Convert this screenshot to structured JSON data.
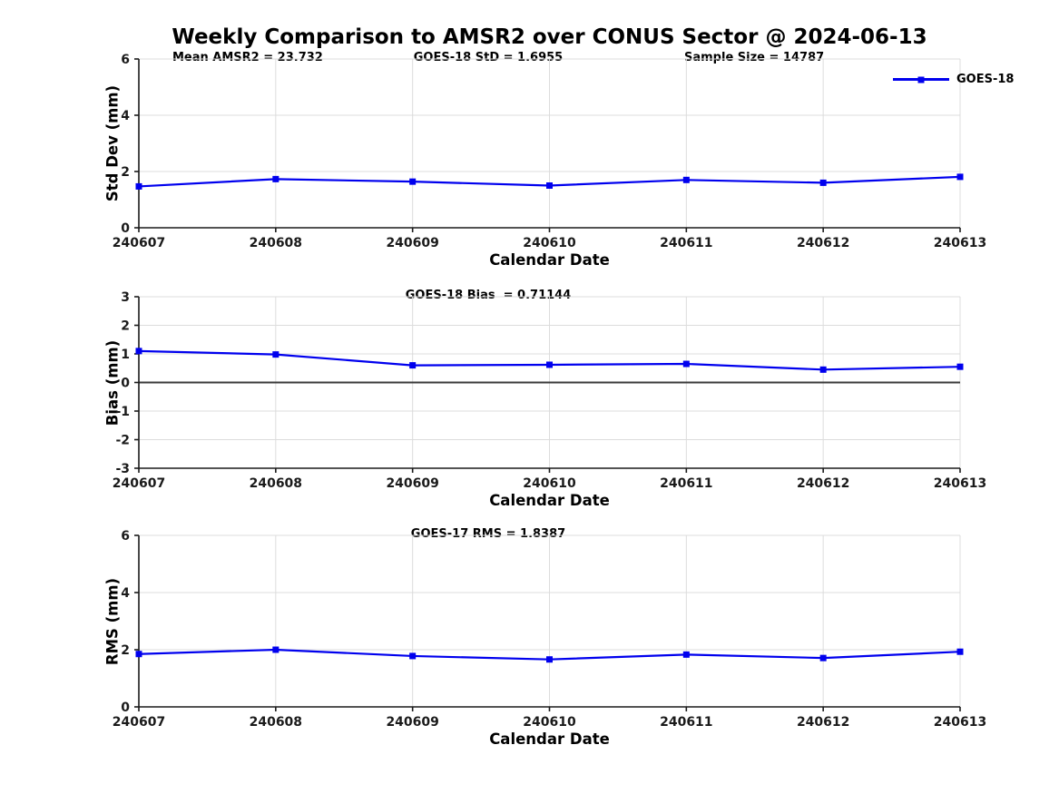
{
  "title": "Weekly Comparison to AMSR2 over CONUS Sector @ 2024-06-13",
  "legend": {
    "label": "GOES-18"
  },
  "colors": {
    "line": "#0000EE",
    "grid": "#DCDCDC",
    "axis": "#1A1A1A",
    "zero_line": "#3A3A3A",
    "text": "#000000"
  },
  "chart_data": [
    {
      "type": "line",
      "panel": "std_dev",
      "ylabel": "Std Dev (mm)",
      "xlabel": "Calendar Date",
      "categories": [
        "240607",
        "240608",
        "240609",
        "240610",
        "240611",
        "240612",
        "240613"
      ],
      "series": [
        {
          "name": "GOES-18",
          "marker": "filled-square",
          "values": [
            1.47,
            1.73,
            1.64,
            1.5,
            1.7,
            1.6,
            1.81
          ]
        }
      ],
      "ylim": [
        0,
        6
      ],
      "yticks": [
        0,
        2,
        4,
        6
      ],
      "grid": true,
      "legend_position": "top-right",
      "annotations": {
        "left": "Mean AMSR2 = 23.732",
        "center": "GOES-18 StD = 1.6955",
        "right": "Sample Size = 14787"
      }
    },
    {
      "type": "line",
      "panel": "bias",
      "ylabel": "Bias (mm)",
      "xlabel": "Calendar Date",
      "categories": [
        "240607",
        "240608",
        "240609",
        "240610",
        "240611",
        "240612",
        "240613"
      ],
      "series": [
        {
          "name": "GOES-18",
          "marker": "filled-square",
          "values": [
            1.1,
            0.98,
            0.6,
            0.62,
            0.65,
            0.45,
            0.55
          ]
        }
      ],
      "ylim": [
        -3,
        3
      ],
      "yticks": [
        -3,
        -2,
        -1,
        0,
        1,
        2,
        3
      ],
      "grid": true,
      "zero_line": true,
      "annotations": {
        "center": "GOES-18 Bias  = 0.71144"
      }
    },
    {
      "type": "line",
      "panel": "rms",
      "ylabel": "RMS (mm)",
      "xlabel": "Calendar Date",
      "categories": [
        "240607",
        "240608",
        "240609",
        "240610",
        "240611",
        "240612",
        "240613"
      ],
      "series": [
        {
          "name": "GOES-18",
          "marker": "filled-square",
          "values": [
            1.85,
            2.0,
            1.78,
            1.66,
            1.83,
            1.71,
            1.93
          ]
        }
      ],
      "ylim": [
        0,
        6
      ],
      "yticks": [
        0,
        2,
        4,
        6
      ],
      "grid": true,
      "annotations": {
        "center": "GOES-17 RMS = 1.8387"
      }
    }
  ]
}
